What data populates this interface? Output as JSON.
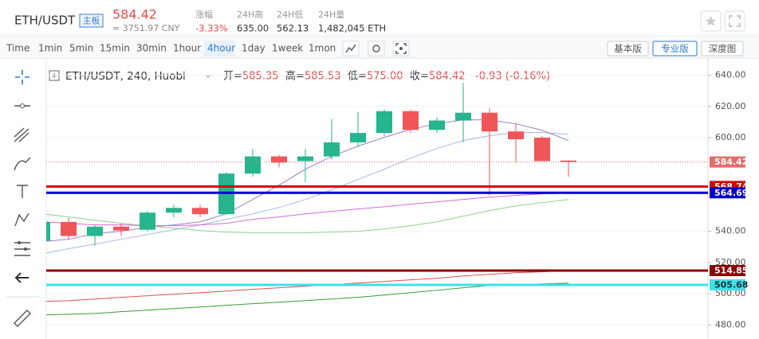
{
  "header": {
    "pair": "ETH/USDT",
    "badge": "主板",
    "price": "584.42",
    "cny": "≈ 3751.97 CNY",
    "stats": [
      {
        "label": "涨幅",
        "value": "-3.33%"
      },
      {
        "label": "24H高",
        "value": "635.00"
      },
      {
        "label": "24H低",
        "value": "562.13"
      },
      {
        "label": "24H量",
        "value": "1,482,045 ETH"
      }
    ]
  },
  "toolbar": {
    "intervals": [
      "Time",
      "1min",
      "5min",
      "15min",
      "30min",
      "1hour",
      "4hour",
      "1day",
      "1week",
      "1mon"
    ],
    "active_interval": "4hour",
    "views": [
      "基本版",
      "专业版",
      "深度图"
    ],
    "active_view": "专业版"
  },
  "chart": {
    "type": "candlestick",
    "legend": {
      "symbol": "ETH/USDT, 240, Huobi",
      "ohlc": [
        {
          "label": "开=",
          "value": "585.35"
        },
        {
          "label": "高=",
          "value": "585.53"
        },
        {
          "label": "低=",
          "value": "575.00"
        },
        {
          "label": "收=",
          "value": "584.42"
        }
      ],
      "change": "-0.93 (-0.16%)"
    },
    "ylim": [
      471,
      651
    ],
    "yticks": [
      {
        "value": 640,
        "label": "640.00"
      },
      {
        "value": 620,
        "label": "620.00"
      },
      {
        "value": 600,
        "label": "600.00"
      },
      {
        "value": 540,
        "label": "540.00"
      },
      {
        "value": 520,
        "label": "520.00"
      },
      {
        "value": 500,
        "label": "500.00"
      },
      {
        "value": 480,
        "label": "480.00"
      }
    ],
    "up_color": "#26b58c",
    "down_color": "#f0555a",
    "candles": {
      "open": [
        534,
        546,
        537,
        543,
        541,
        552,
        555,
        551,
        577,
        588,
        585,
        588,
        597,
        603,
        617,
        605,
        611,
        616,
        604,
        600,
        585.35
      ],
      "high": [
        547,
        548.7,
        544,
        545,
        553,
        557,
        557,
        578,
        593,
        589,
        593,
        612,
        616.5,
        618,
        618,
        613,
        635,
        619,
        609,
        601,
        585.53
      ],
      "low": [
        532,
        535,
        531,
        537,
        540,
        549,
        549,
        551,
        575,
        581,
        571.6,
        586,
        594,
        601,
        603,
        603,
        597,
        563,
        584,
        585,
        575.0
      ],
      "close": [
        546,
        537,
        543,
        540.5,
        552,
        555,
        551,
        577,
        588,
        584,
        588,
        597,
        603,
        617,
        605,
        611,
        616,
        604,
        599,
        585,
        584.42
      ]
    },
    "ma_lines": [
      {
        "color": "#a9b8e8",
        "values": [
          525.7,
          528.8,
          531.8,
          534.9,
          538,
          541,
          544.1,
          547.7,
          551.2,
          555.3,
          560.4,
          566.5,
          573.2,
          579.8,
          586.9,
          593.1,
          598.2,
          601.2,
          603.3,
          603.3,
          602.2
        ]
      },
      {
        "color": "#9b7fc4",
        "values": [
          533.4,
          534.9,
          538.5,
          540,
          542.6,
          544.1,
          546.1,
          551.2,
          560.4,
          569.6,
          579.8,
          588,
          594.6,
          600.2,
          605.3,
          608.9,
          611.4,
          611.4,
          608.9,
          604.8,
          598.2
        ]
      },
      {
        "color": "#d46ad4",
        "values": [
          546.1,
          545.1,
          544.1,
          544.1,
          543.6,
          543.6,
          544.1,
          545.1,
          547.7,
          549.2,
          551.2,
          552.8,
          554.3,
          555.8,
          557.3,
          558.9,
          560.4,
          561.9,
          563,
          564,
          564.5
        ]
      },
      {
        "color": "#8fd08f",
        "values": [
          551.2,
          549.2,
          547.1,
          545.1,
          543.6,
          542,
          540.5,
          539.5,
          539,
          539,
          539,
          539.5,
          540,
          541.5,
          543.6,
          546.1,
          549.7,
          553.3,
          556.3,
          558.4,
          560.4
        ]
      },
      {
        "color": "#e05050",
        "values": [
          495.1,
          495.6,
          496.6,
          497.7,
          498.7,
          499.7,
          500.7,
          501.7,
          502.8,
          503.8,
          504.8,
          505.8,
          506.8,
          507.9,
          508.9,
          509.9,
          511.4,
          512.4,
          513.5,
          514,
          515
        ]
      },
      {
        "color": "#3a9a3a",
        "values": [
          486.4,
          486.9,
          487.4,
          488.5,
          489.5,
          490.5,
          491.5,
          492.6,
          493.6,
          494.6,
          495.6,
          496.6,
          497.7,
          499.2,
          500.7,
          502.2,
          503.8,
          505.3,
          505.8,
          506.3,
          506.8
        ]
      }
    ],
    "price_lines": [
      {
        "value": 584.42,
        "color": "#e86a6a",
        "style": "dotted",
        "text_color": "#ffffff"
      },
      {
        "value": 568.74,
        "color": "#d40000",
        "style": "solid",
        "text_color": "#ffffff"
      },
      {
        "value": 564.69,
        "color": "#0000c8",
        "style": "solid",
        "text_color": "#ffffff"
      },
      {
        "value": 514.85,
        "color": "#8b0000",
        "style": "solid",
        "text_color": "#ffffff"
      },
      {
        "value": 505.68,
        "color": "#40e0e8",
        "style": "solid",
        "text_color": "#003333"
      }
    ]
  }
}
